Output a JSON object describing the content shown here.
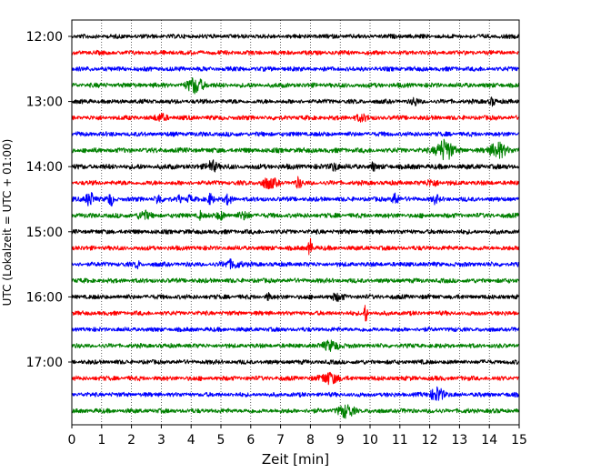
{
  "chart_data": {
    "type": "line",
    "title": "",
    "xlabel": "Zeit  [min]",
    "ylabel": "UTC (Lokalzeit = UTC + 01:00)",
    "xlim": [
      0,
      15
    ],
    "x_ticks": [
      0,
      1,
      2,
      3,
      4,
      5,
      6,
      7,
      8,
      9,
      10,
      11,
      12,
      13,
      14,
      15
    ],
    "x_tick_labels": [
      "0",
      "1",
      "2",
      "3",
      "4",
      "5",
      "6",
      "7",
      "8",
      "9",
      "10",
      "11",
      "12",
      "13",
      "14",
      "15"
    ],
    "grid": "vertical dotted at each minute",
    "trace_interval_min": 15,
    "y_tick_labels": [
      "12:00",
      "13:00",
      "14:00",
      "15:00",
      "16:00",
      "17:00"
    ],
    "color_cycle": [
      "#000000",
      "#ff0000",
      "#0000ff",
      "#008000"
    ],
    "series": [
      {
        "start": "12:00",
        "color": "#000000",
        "base_amp": 2.2,
        "events": []
      },
      {
        "start": "12:15",
        "color": "#ff0000",
        "base_amp": 2.2,
        "events": []
      },
      {
        "start": "12:30",
        "color": "#0000ff",
        "base_amp": 2.3,
        "events": []
      },
      {
        "start": "12:45",
        "color": "#008000",
        "base_amp": 2.4,
        "events": [
          {
            "t": 4.15,
            "amp": 8,
            "dur": 0.4
          }
        ]
      },
      {
        "start": "13:00",
        "color": "#000000",
        "base_amp": 2.2,
        "events": [
          {
            "t": 11.5,
            "amp": 4,
            "dur": 0.15
          },
          {
            "t": 14.1,
            "amp": 4,
            "dur": 0.15
          }
        ]
      },
      {
        "start": "13:15",
        "color": "#ff0000",
        "base_amp": 2.3,
        "events": [
          {
            "t": 3.0,
            "amp": 3,
            "dur": 0.3
          },
          {
            "t": 9.7,
            "amp": 3,
            "dur": 0.3
          }
        ]
      },
      {
        "start": "13:30",
        "color": "#0000ff",
        "base_amp": 2.3,
        "events": []
      },
      {
        "start": "13:45",
        "color": "#008000",
        "base_amp": 2.5,
        "events": [
          {
            "t": 12.5,
            "amp": 11,
            "dur": 0.4
          },
          {
            "t": 14.3,
            "amp": 8,
            "dur": 0.4
          }
        ]
      },
      {
        "start": "14:00",
        "color": "#000000",
        "base_amp": 2.6,
        "events": [
          {
            "t": 4.7,
            "amp": 6,
            "dur": 0.25
          },
          {
            "t": 8.8,
            "amp": 4,
            "dur": 0.2
          },
          {
            "t": 10.1,
            "amp": 4,
            "dur": 0.1
          }
        ]
      },
      {
        "start": "14:15",
        "color": "#ff0000",
        "base_amp": 2.3,
        "events": [
          {
            "t": 6.6,
            "amp": 5,
            "dur": 0.4
          },
          {
            "t": 7.6,
            "amp": 5,
            "dur": 0.15
          },
          {
            "t": 12.1,
            "amp": 3,
            "dur": 0.3
          }
        ]
      },
      {
        "start": "14:30",
        "color": "#0000ff",
        "base_amp": 2.3,
        "events": [
          {
            "t": 0.6,
            "amp": 8,
            "dur": 0.2
          },
          {
            "t": 1.3,
            "amp": 6,
            "dur": 0.15
          },
          {
            "t": 2.9,
            "amp": 5,
            "dur": 0.15
          },
          {
            "t": 3.6,
            "amp": 4,
            "dur": 0.1
          },
          {
            "t": 3.95,
            "amp": 4,
            "dur": 0.1
          },
          {
            "t": 4.65,
            "amp": 6,
            "dur": 0.15
          },
          {
            "t": 5.25,
            "amp": 5,
            "dur": 0.15
          },
          {
            "t": 10.85,
            "amp": 7,
            "dur": 0.15
          },
          {
            "t": 12.2,
            "amp": 4,
            "dur": 0.15
          }
        ]
      },
      {
        "start": "14:45",
        "color": "#008000",
        "base_amp": 2.4,
        "events": [
          {
            "t": 2.4,
            "amp": 4,
            "dur": 0.3
          },
          {
            "t": 4.3,
            "amp": 4,
            "dur": 0.1
          },
          {
            "t": 5.0,
            "amp": 4,
            "dur": 0.2
          },
          {
            "t": 5.8,
            "amp": 3,
            "dur": 0.3
          }
        ]
      },
      {
        "start": "15:00",
        "color": "#000000",
        "base_amp": 2.3,
        "events": []
      },
      {
        "start": "15:15",
        "color": "#ff0000",
        "base_amp": 2.3,
        "events": [
          {
            "t": 8.0,
            "amp": 10,
            "dur": 0.1
          }
        ]
      },
      {
        "start": "15:30",
        "color": "#0000ff",
        "base_amp": 2.3,
        "events": [
          {
            "t": 2.2,
            "amp": 4,
            "dur": 0.1
          },
          {
            "t": 5.4,
            "amp": 4,
            "dur": 0.4
          }
        ]
      },
      {
        "start": "15:45",
        "color": "#008000",
        "base_amp": 2.3,
        "events": []
      },
      {
        "start": "16:00",
        "color": "#000000",
        "base_amp": 2.3,
        "events": [
          {
            "t": 6.6,
            "amp": 4,
            "dur": 0.1
          },
          {
            "t": 8.9,
            "amp": 3,
            "dur": 0.3
          }
        ]
      },
      {
        "start": "16:15",
        "color": "#ff0000",
        "base_amp": 2.2,
        "events": [
          {
            "t": 9.85,
            "amp": 11,
            "dur": 0.08
          }
        ]
      },
      {
        "start": "16:30",
        "color": "#0000ff",
        "base_amp": 2.2,
        "events": []
      },
      {
        "start": "16:45",
        "color": "#008000",
        "base_amp": 2.2,
        "events": [
          {
            "t": 8.7,
            "amp": 5,
            "dur": 0.4
          }
        ]
      },
      {
        "start": "17:00",
        "color": "#000000",
        "base_amp": 2.2,
        "events": []
      },
      {
        "start": "17:15",
        "color": "#ff0000",
        "base_amp": 2.3,
        "events": [
          {
            "t": 8.65,
            "amp": 6,
            "dur": 0.4
          }
        ]
      },
      {
        "start": "17:30",
        "color": "#0000ff",
        "base_amp": 2.2,
        "events": [
          {
            "t": 12.25,
            "amp": 8,
            "dur": 0.3
          }
        ]
      },
      {
        "start": "17:45",
        "color": "#008000",
        "base_amp": 2.3,
        "events": [
          {
            "t": 9.2,
            "amp": 6,
            "dur": 0.4
          }
        ]
      }
    ]
  }
}
